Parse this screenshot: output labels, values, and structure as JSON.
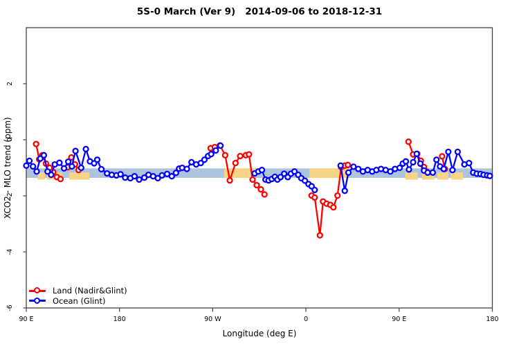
{
  "chart_data": {
    "type": "line",
    "title": "5S-0 March (Ver 9)   2014-09-06 to 2018-12-31",
    "xlabel": "Longitude (deg E)",
    "ylabel": "XCO2 - MLO trend (ppm)",
    "xlim": [
      90,
      540
    ],
    "ylim": [
      -6,
      4
    ],
    "grid": false,
    "legend_position": "bottom-left",
    "xticks": [
      {
        "v": 90,
        "label": "90 E"
      },
      {
        "v": 180,
        "label": "180"
      },
      {
        "v": 270,
        "label": "90 W"
      },
      {
        "v": 360,
        "label": "0"
      },
      {
        "v": 450,
        "label": "90 E"
      },
      {
        "v": 540,
        "label": "180"
      }
    ],
    "yticks": [
      {
        "v": 2,
        "label": "2"
      },
      {
        "v": 0,
        "label": "0"
      },
      {
        "v": -2,
        "label": "-2"
      },
      {
        "v": -4,
        "label": "-4"
      },
      {
        "v": -6,
        "label": "-6"
      }
    ],
    "colors": {
      "frame": "#404040",
      "text": "#000000",
      "ocean_band": "#aec3de",
      "land_band": "#f8d586",
      "land_series": "#ff0000",
      "ocean_series": "#0000ff"
    },
    "map_band": {
      "value_top": -1.02,
      "value_bottom": -1.36,
      "land_segments": [
        {
          "from": 101,
          "to": 108,
          "full": false
        },
        {
          "from": 110,
          "to": 117,
          "full": false
        },
        {
          "from": 119,
          "to": 125,
          "full": false
        },
        {
          "from": 131.5,
          "to": 151,
          "full": false
        },
        {
          "from": 281,
          "to": 311,
          "full": true
        },
        {
          "from": 363.5,
          "to": 399.5,
          "full": true
        },
        {
          "from": 456,
          "to": 468,
          "full": false
        },
        {
          "from": 472,
          "to": 484,
          "full": false
        },
        {
          "from": 487,
          "to": 497.5,
          "full": false
        },
        {
          "from": 500,
          "to": 511.5,
          "full": false
        }
      ]
    },
    "series": [
      {
        "name": "Land (Nadir&Glint)",
        "color": "#ff0000",
        "segments": [
          [
            [
              99.5,
              -0.15
            ],
            [
              102.5,
              -0.7
            ],
            [
              105.5,
              -0.55
            ],
            [
              109,
              -0.85
            ],
            [
              112.5,
              -1.0
            ],
            [
              116,
              -1.15
            ],
            [
              119.5,
              -1.33
            ],
            [
              123,
              -1.4
            ]
          ],
          [
            [
              130,
              -0.98
            ],
            [
              133.5,
              -0.63
            ],
            [
              137,
              -0.88
            ],
            [
              140.5,
              -1.08
            ]
          ],
          [
            [
              268,
              -0.3
            ],
            [
              272,
              -0.26
            ],
            [
              277,
              -0.2
            ],
            [
              282,
              -0.55
            ],
            [
              286.5,
              -1.45
            ],
            [
              292,
              -0.83
            ],
            [
              296.5,
              -0.58
            ],
            [
              302,
              -0.55
            ],
            [
              305,
              -0.52
            ],
            [
              308.5,
              -1.42
            ],
            [
              312.5,
              -1.62
            ],
            [
              316.5,
              -1.77
            ],
            [
              320,
              -1.95
            ]
          ],
          [
            [
              365.5,
              -1.99
            ],
            [
              368.5,
              -2.06
            ],
            [
              373.5,
              -3.41
            ],
            [
              376.5,
              -2.2
            ],
            [
              380,
              -2.28
            ],
            [
              383.5,
              -2.32
            ],
            [
              386.5,
              -2.41
            ],
            [
              390.5,
              -1.99
            ],
            [
              394,
              -0.98
            ],
            [
              397.5,
              -0.92
            ],
            [
              400.5,
              -0.9
            ]
          ],
          [
            [
              459,
              -0.07
            ],
            [
              463.5,
              -0.52
            ],
            [
              467.5,
              -0.5
            ],
            [
              471,
              -0.75
            ],
            [
              474,
              -0.97
            ],
            [
              476.5,
              -1.13
            ]
          ],
          [
            [
              491.5,
              -0.59
            ],
            [
              494,
              -1.04
            ]
          ]
        ]
      },
      {
        "name": "Ocean (Glint)",
        "color": "#0000ff",
        "segments": [
          [
            [
              90,
              -0.92
            ],
            [
              93,
              -0.75
            ],
            [
              96.5,
              -0.95
            ],
            [
              100,
              -1.13
            ],
            [
              103.5,
              -0.67
            ],
            [
              107,
              -0.55
            ],
            [
              110.5,
              -1.13
            ],
            [
              114,
              -1.25
            ],
            [
              117.5,
              -0.88
            ],
            [
              122,
              -0.82
            ],
            [
              126.5,
              -1.02
            ],
            [
              130.5,
              -0.78
            ],
            [
              134,
              -0.95
            ],
            [
              137.5,
              -0.4
            ],
            [
              143,
              -1.0
            ],
            [
              147.5,
              -0.33
            ],
            [
              151.5,
              -0.77
            ],
            [
              155.5,
              -0.84
            ],
            [
              158.5,
              -0.71
            ],
            [
              162.5,
              -1.05
            ],
            [
              168,
              -1.2
            ],
            [
              172.5,
              -1.25
            ],
            [
              177,
              -1.27
            ],
            [
              181,
              -1.23
            ],
            [
              185.5,
              -1.35
            ],
            [
              190.5,
              -1.37
            ],
            [
              194.5,
              -1.3
            ],
            [
              199,
              -1.42
            ],
            [
              204,
              -1.35
            ],
            [
              208,
              -1.25
            ],
            [
              212.5,
              -1.3
            ],
            [
              217,
              -1.37
            ],
            [
              221,
              -1.27
            ],
            [
              226,
              -1.22
            ],
            [
              230.5,
              -1.3
            ],
            [
              234.5,
              -1.18
            ],
            [
              237.5,
              -1.03
            ],
            [
              240.5,
              -1.0
            ],
            [
              245,
              -1.04
            ],
            [
              249.5,
              -0.8
            ],
            [
              254,
              -0.88
            ],
            [
              258.5,
              -0.83
            ],
            [
              262,
              -0.71
            ],
            [
              265.5,
              -0.58
            ],
            [
              268.5,
              -0.51
            ],
            [
              273,
              -0.38
            ],
            [
              277.5,
              -0.21
            ]
          ],
          [
            [
              310.5,
              -1.2
            ],
            [
              314,
              -1.13
            ],
            [
              317.5,
              -1.08
            ],
            [
              321,
              -1.42
            ],
            [
              324,
              -1.45
            ],
            [
              327,
              -1.4
            ],
            [
              330,
              -1.32
            ],
            [
              332.5,
              -1.42
            ],
            [
              335.5,
              -1.33
            ],
            [
              339,
              -1.21
            ],
            [
              342.5,
              -1.33
            ],
            [
              345.5,
              -1.21
            ],
            [
              349,
              -1.13
            ],
            [
              352.5,
              -1.25
            ],
            [
              355.5,
              -1.37
            ],
            [
              359,
              -1.46
            ],
            [
              362.5,
              -1.58
            ],
            [
              365.5,
              -1.66
            ],
            [
              368.5,
              -1.79
            ]
          ],
          [
            [
              393.5,
              -0.92
            ],
            [
              397.5,
              -1.82
            ],
            [
              401,
              -1.17
            ],
            [
              406,
              -0.96
            ],
            [
              410.5,
              -1.04
            ],
            [
              415,
              -1.13
            ],
            [
              419.5,
              -1.08
            ],
            [
              424,
              -1.13
            ],
            [
              428,
              -1.08
            ],
            [
              432.5,
              -1.04
            ],
            [
              437,
              -1.08
            ],
            [
              441.5,
              -1.13
            ],
            [
              446,
              -1.04
            ],
            [
              450.5,
              -1.0
            ],
            [
              453.5,
              -0.85
            ],
            [
              456.5,
              -0.77
            ],
            [
              459.5,
              -1.06
            ],
            [
              463.5,
              -0.8
            ],
            [
              467,
              -0.5
            ],
            [
              470.5,
              -0.85
            ],
            [
              474,
              -1.1
            ],
            [
              477.5,
              -1.17
            ],
            [
              482.5,
              -1.17
            ],
            [
              486,
              -0.71
            ],
            [
              489.5,
              -0.95
            ],
            [
              493,
              -1.04
            ],
            [
              497.5,
              -0.43
            ],
            [
              501.5,
              -1.08
            ],
            [
              506.5,
              -0.43
            ],
            [
              513,
              -0.88
            ],
            [
              517.5,
              -0.83
            ],
            [
              521.5,
              -1.17
            ],
            [
              525,
              -1.21
            ],
            [
              528.5,
              -1.22
            ],
            [
              531.5,
              -1.25
            ],
            [
              535,
              -1.27
            ],
            [
              537.5,
              -1.29
            ]
          ]
        ]
      }
    ]
  }
}
